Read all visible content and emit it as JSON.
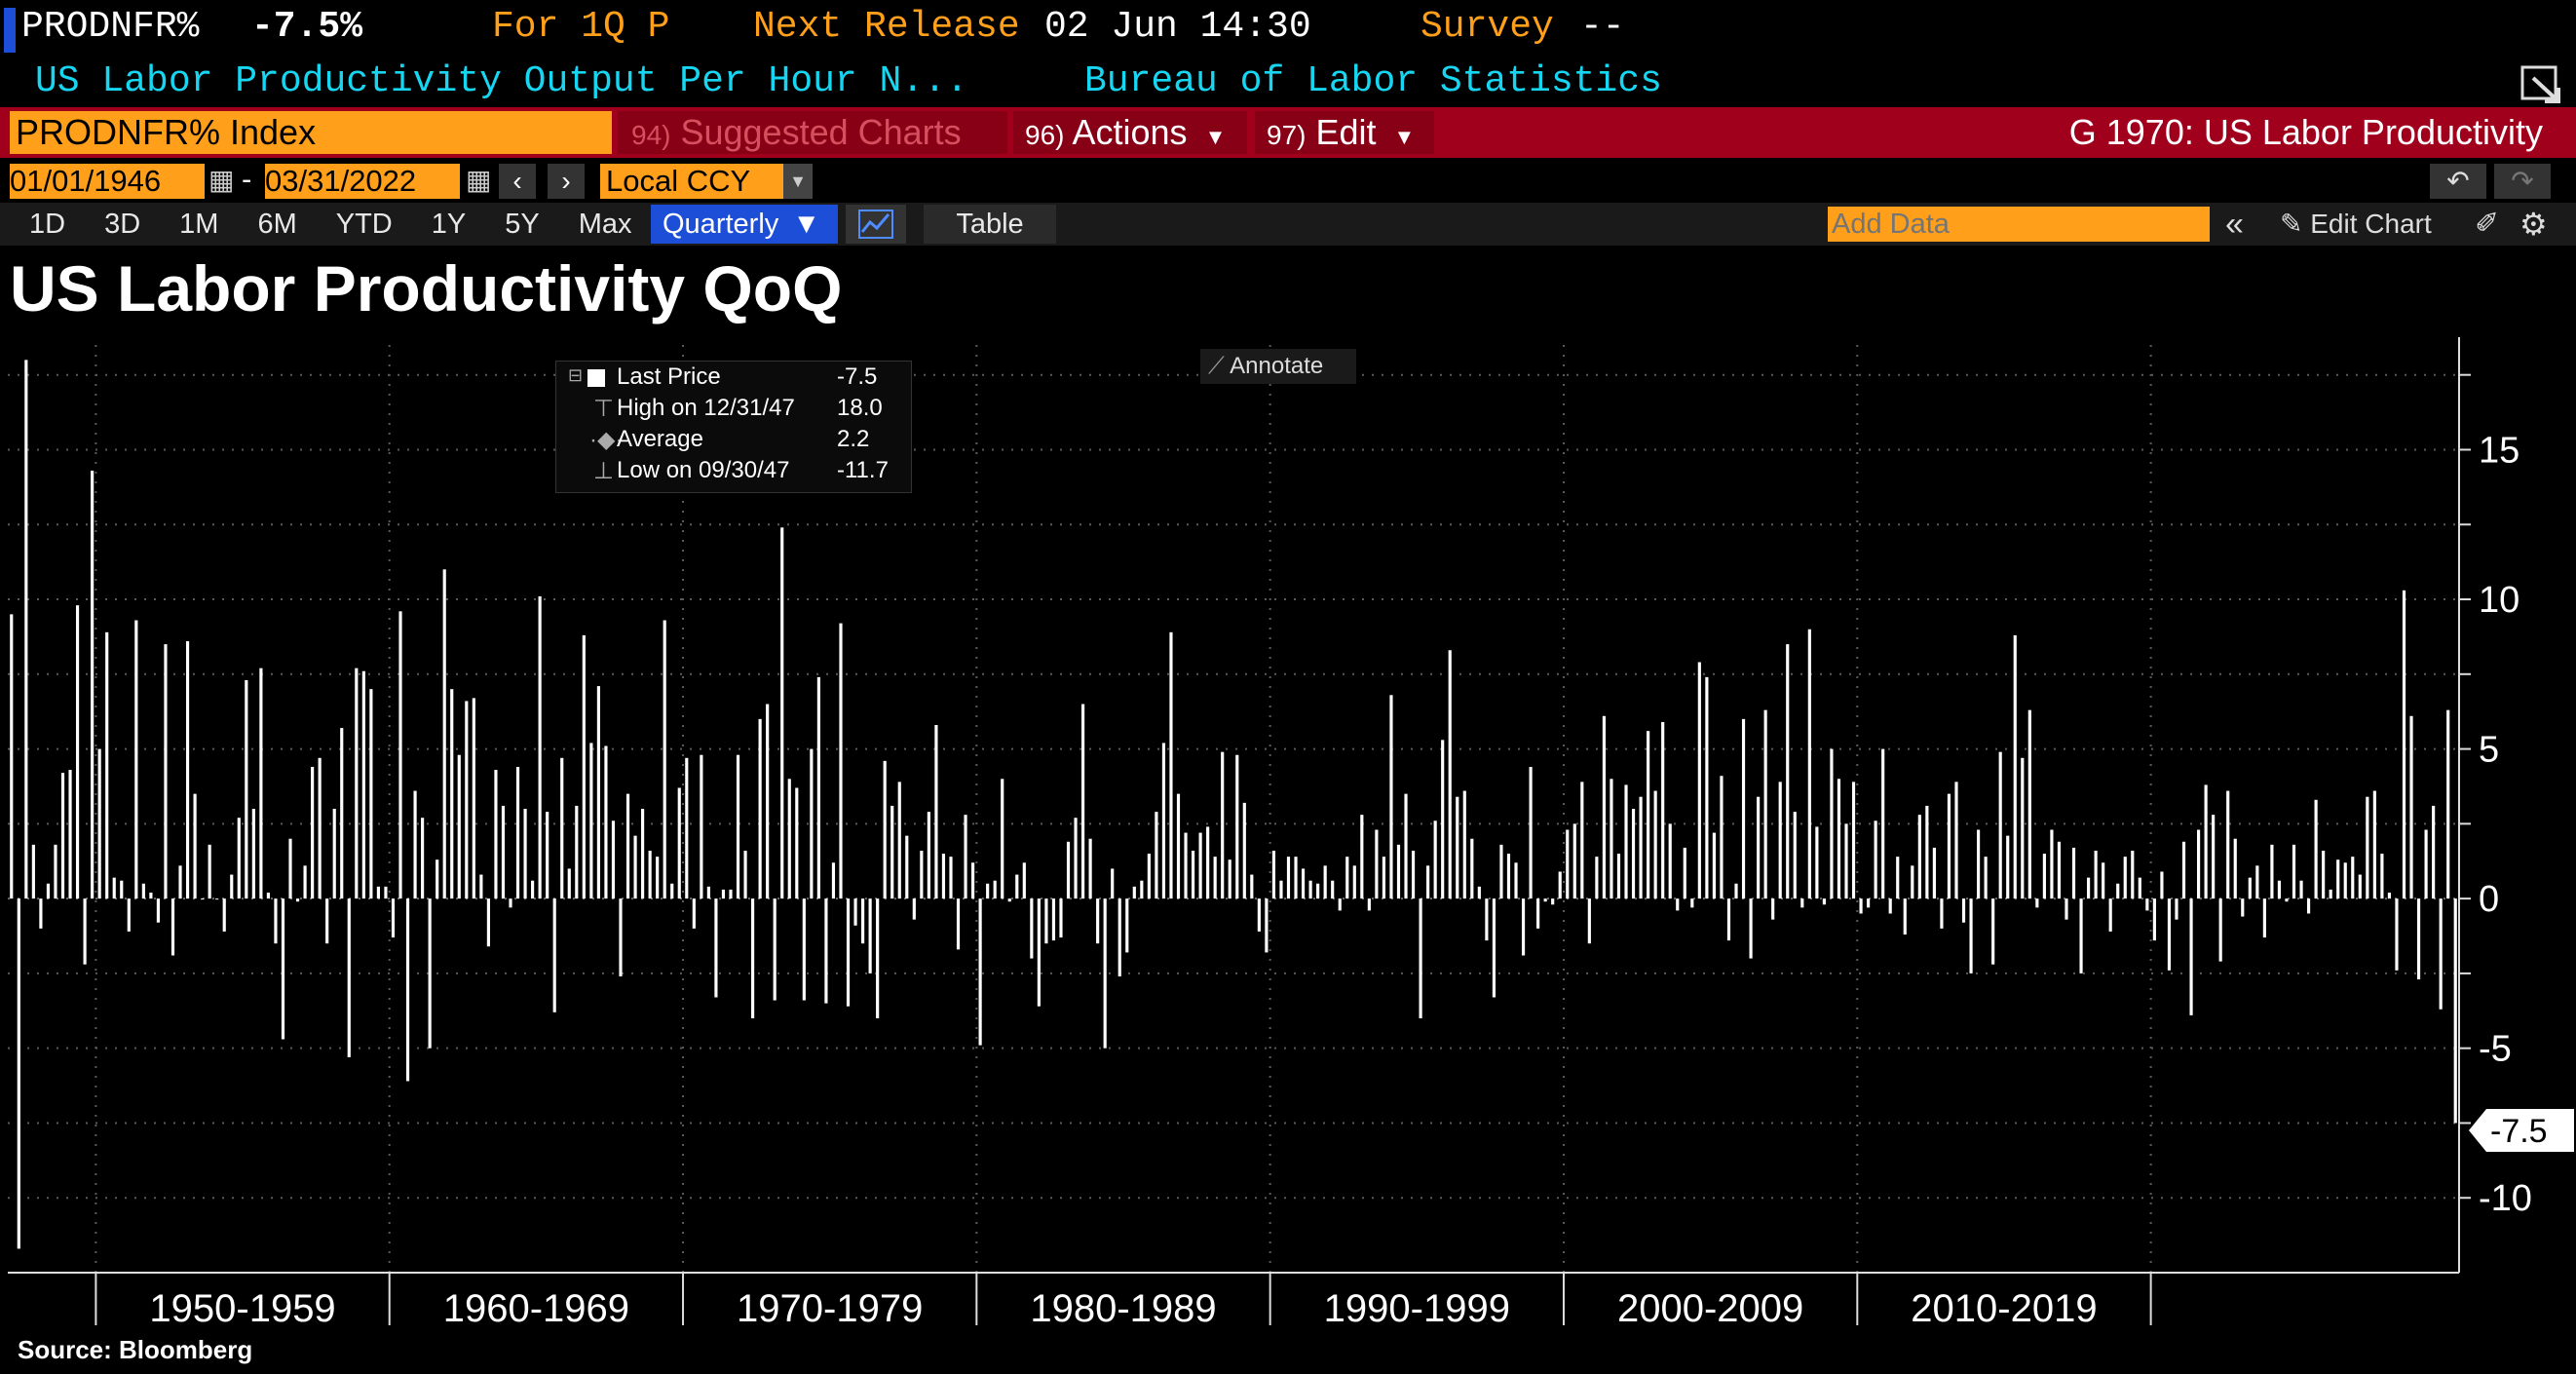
{
  "header": {
    "ticker": "PRODNFR%",
    "value": "-7.5%",
    "for_label": "For 1Q P",
    "next_release_label": "Next Release",
    "next_release_value": "02 Jun 14:30",
    "survey_label": "Survey",
    "survey_value": "--",
    "description": "US Labor Productivity Output Per Hour N...",
    "source_agency": "Bureau of Labor Statistics"
  },
  "command_bar": {
    "security": "PRODNFR% Index",
    "suggested_num": "94)",
    "suggested_label": "Suggested Charts",
    "actions_num": "96)",
    "actions_label": "Actions",
    "edit_num": "97)",
    "edit_label": "Edit",
    "function_title": "G 1970: US Labor Productivity"
  },
  "date_bar": {
    "start_date": "01/01/1946",
    "end_date": "03/31/2022",
    "separator": "-",
    "currency": "Local CCY"
  },
  "toolbar": {
    "periods": [
      "1D",
      "3D",
      "1M",
      "6M",
      "YTD",
      "1Y",
      "5Y",
      "Max"
    ],
    "frequency": "Quarterly",
    "table_label": "Table",
    "add_data_placeholder": "Add Data",
    "edit_chart_label": "Edit Chart"
  },
  "chart_title": "US Labor Productivity QoQ",
  "legend": {
    "last_price_label": "Last Price",
    "last_price_value": "-7.5",
    "high_label": "High on 12/31/47",
    "high_value": "18.0",
    "average_label": "Average",
    "average_value": "2.2",
    "low_label": "Low on 09/30/47",
    "low_value": "-11.7"
  },
  "annotate_label": "Annotate",
  "last_value_tag": "-7.5",
  "footer_source": "Source: Bloomberg",
  "colors": {
    "orange": "#ff9f1a",
    "cyan": "#17d6f2",
    "command_red": "#a0001c",
    "frequency_blue": "#1d4ed8",
    "bars": "#ffffff"
  },
  "chart_data": {
    "type": "bar",
    "frequency": "quarterly",
    "start": "1947-Q1",
    "end": "2022-Q1",
    "ylim": [
      -12.5,
      18.5
    ],
    "yticks": [
      -10,
      -5,
      0,
      5,
      10,
      15
    ],
    "grid": true,
    "decade_labels": [
      "1950-1959",
      "1960-1969",
      "1970-1979",
      "1980-1989",
      "1990-1999",
      "2000-2009",
      "2010-2019"
    ],
    "values": [
      9.5,
      -11.7,
      18.0,
      1.8,
      -1.0,
      0.5,
      1.8,
      4.2,
      4.3,
      9.8,
      -2.2,
      14.3,
      5.0,
      8.9,
      0.7,
      0.6,
      -1.1,
      9.3,
      0.5,
      0.2,
      -0.8,
      8.5,
      -1.9,
      1.1,
      8.6,
      3.5,
      0,
      1.8,
      0,
      -1.1,
      0.8,
      2.7,
      7.3,
      3.0,
      7.7,
      0.2,
      -1.5,
      -4.7,
      2.0,
      -0.1,
      1.1,
      4.4,
      4.7,
      -1.5,
      3.0,
      5.7,
      -5.3,
      7.7,
      7.6,
      7.0,
      0.4,
      0.4,
      -1.3,
      9.6,
      -6.1,
      3.6,
      2.7,
      -5.0,
      1.3,
      11.0,
      7.0,
      4.8,
      6.6,
      6.7,
      0.8,
      -1.6,
      4.3,
      3.1,
      -0.3,
      4.4,
      3.0,
      0.6,
      10.1,
      2.9,
      -3.8,
      4.7,
      1.0,
      3.1,
      8.8,
      5.2,
      7.1,
      5.1,
      2.6,
      -2.6,
      3.5,
      2.1,
      3.0,
      1.6,
      1.4,
      9.3,
      0.5,
      3.7,
      4.7,
      -1.0,
      4.8,
      0.4,
      -3.3,
      0.3,
      0.3,
      4.8,
      1.6,
      -4.0,
      6.0,
      6.5,
      -3.4,
      12.4,
      4.0,
      3.7,
      -3.4,
      5.0,
      7.4,
      -3.5,
      1.2,
      9.2,
      -3.6,
      -0.9,
      -1.5,
      -2.5,
      -4.0,
      4.6,
      3.1,
      3.9,
      2.1,
      -0.7,
      1.6,
      2.9,
      5.8,
      1.5,
      1.4,
      -1.7,
      2.8,
      1.2,
      -4.9,
      0.5,
      0.6,
      4.0,
      -0.1,
      0.8,
      1.2,
      -2.0,
      -3.6,
      -1.5,
      -1.4,
      -1.3,
      1.9,
      2.7,
      6.5,
      2.0,
      -1.5,
      -5.0,
      1.0,
      -2.6,
      -1.8,
      0.4,
      0.6,
      1.5,
      2.9,
      5.2,
      8.9,
      3.5,
      2.2,
      1.6,
      2.2,
      2.4,
      1.4,
      4.9,
      1.3,
      4.8,
      3.2,
      0.8,
      -1.1,
      -1.8,
      1.6,
      0.6,
      1.4,
      1.4,
      1.0,
      0.6,
      0.5,
      1.1,
      0.6,
      -0.4,
      1.4,
      1.1,
      2.8,
      -0.4,
      2.3,
      1.4,
      6.8,
      1.8,
      3.5,
      1.6,
      -4.0,
      1.1,
      2.6,
      5.3,
      8.3,
      3.4,
      3.6,
      2.0,
      0.4,
      -1.4,
      -3.3,
      1.8,
      1.5,
      1.2,
      -1.9,
      4.4,
      -1.0,
      -0.1,
      -0.2,
      0.9,
      2.3,
      2.5,
      3.9,
      -1.5,
      1.4,
      6.1,
      4.0,
      1.5,
      3.8,
      3.0,
      3.4,
      5.6,
      3.6,
      5.9,
      2.5,
      -0.4,
      1.7,
      -0.3,
      7.9,
      7.4,
      2.2,
      4.1,
      -1.4,
      0.5,
      6.0,
      -2.0,
      3.4,
      6.3,
      -0.7,
      3.9,
      8.5,
      2.9,
      -0.3,
      9.0,
      2.4,
      -0.2,
      5.0,
      4.0,
      2.5,
      3.9,
      -0.5,
      -0.3,
      2.6,
      5.0,
      -0.5,
      1.4,
      -1.2,
      1.1,
      2.8,
      3.1,
      1.7,
      -1.0,
      3.5,
      3.9,
      -0.8,
      -2.5,
      2.3,
      1.4,
      -2.2,
      4.9,
      2.1,
      8.8,
      4.7,
      6.3,
      -0.3,
      1.5,
      2.3,
      1.9,
      -0.7,
      1.7,
      -2.5,
      0.7,
      1.6,
      1.2,
      -1.1,
      0.5,
      1.4,
      1.6,
      0.7,
      -0.4,
      -1.4,
      0.9,
      -2.4,
      -0.7,
      1.9,
      -3.9,
      2.3,
      3.8,
      2.8,
      -2.1,
      3.6,
      2.0,
      -0.6,
      0.7,
      1.1,
      -1.3,
      1.8,
      0.6,
      -0.1,
      1.8,
      0.6,
      -0.5,
      3.3,
      1.6,
      0.3,
      1.3,
      1.2,
      1.4,
      0.8,
      3.4,
      3.6,
      1.5,
      0.2,
      -2.4,
      10.3,
      6.1,
      -2.7,
      2.3,
      3.1,
      -3.7,
      6.3,
      -7.5
    ]
  }
}
